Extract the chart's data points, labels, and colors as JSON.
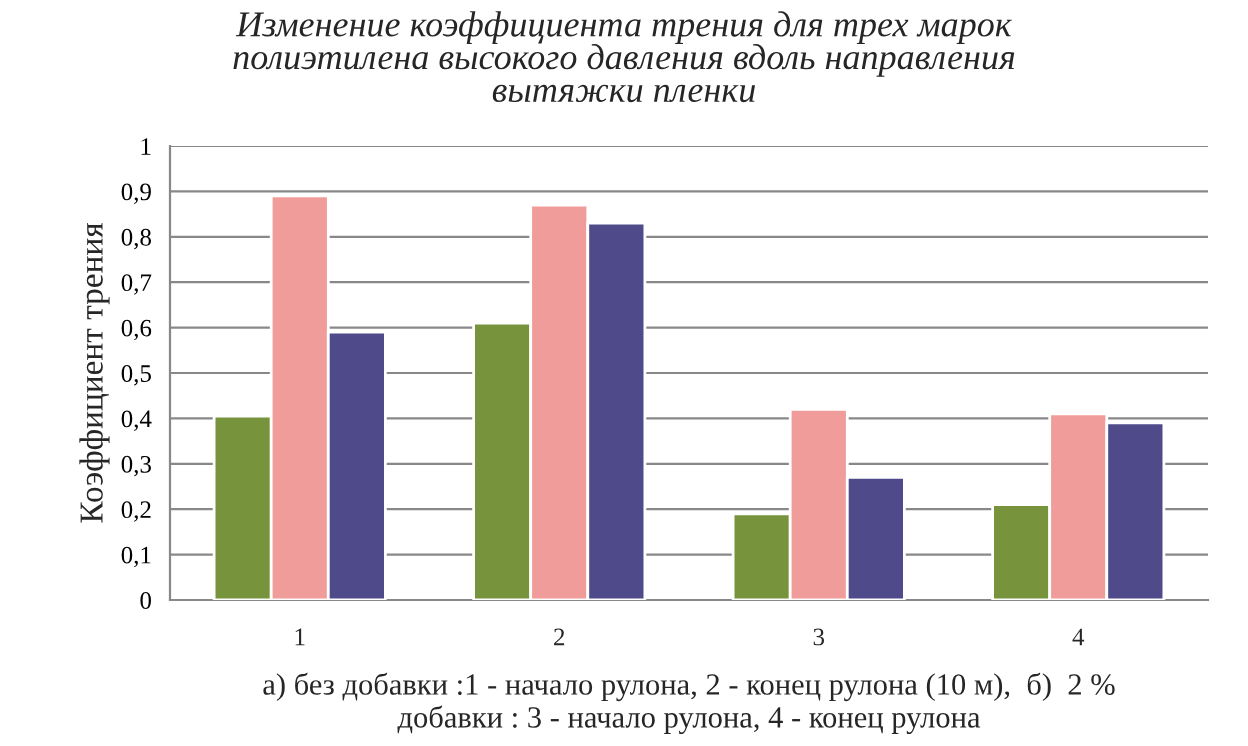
{
  "chart_data": {
    "type": "bar",
    "title": "Изменение коэффициента трения для трех марок\nполиэтилена высокого давления вдоль направления\nвытяжки пленки",
    "ylabel": "Коэффициент трения",
    "xlabel": "а) без добавки :1 - начало рулона, 2 - конец рулона (10 м),  б)  2 %\nдобавки : 3 - начало рулона, 4 - конец рулона",
    "categories": [
      "1",
      "2",
      "3",
      "4"
    ],
    "series": [
      {
        "color": "#77933c",
        "values": [
          0.405,
          0.61,
          0.19,
          0.21
        ]
      },
      {
        "color": "#f09c9a",
        "values": [
          0.89,
          0.87,
          0.42,
          0.41
        ]
      },
      {
        "color": "#4f4a8a",
        "values": [
          0.59,
          0.83,
          0.27,
          0.39
        ]
      }
    ],
    "ylim": [
      0,
      1
    ],
    "yticks": [
      0,
      {
        "value": 0.1,
        "label": "0,1"
      },
      {
        "value": 0.2,
        "label": "0,2"
      },
      {
        "value": 0.3,
        "label": "0,3"
      },
      {
        "value": 0.4,
        "label": "0,4"
      },
      {
        "value": 0.5,
        "label": "0,5"
      },
      {
        "value": 0.6,
        "label": "0,6"
      },
      {
        "value": 0.7,
        "label": "0,7"
      },
      {
        "value": 0.8,
        "label": "0,8"
      },
      {
        "value": 0.9,
        "label": "0,9"
      },
      1
    ],
    "grid": "y",
    "legend": false
  }
}
